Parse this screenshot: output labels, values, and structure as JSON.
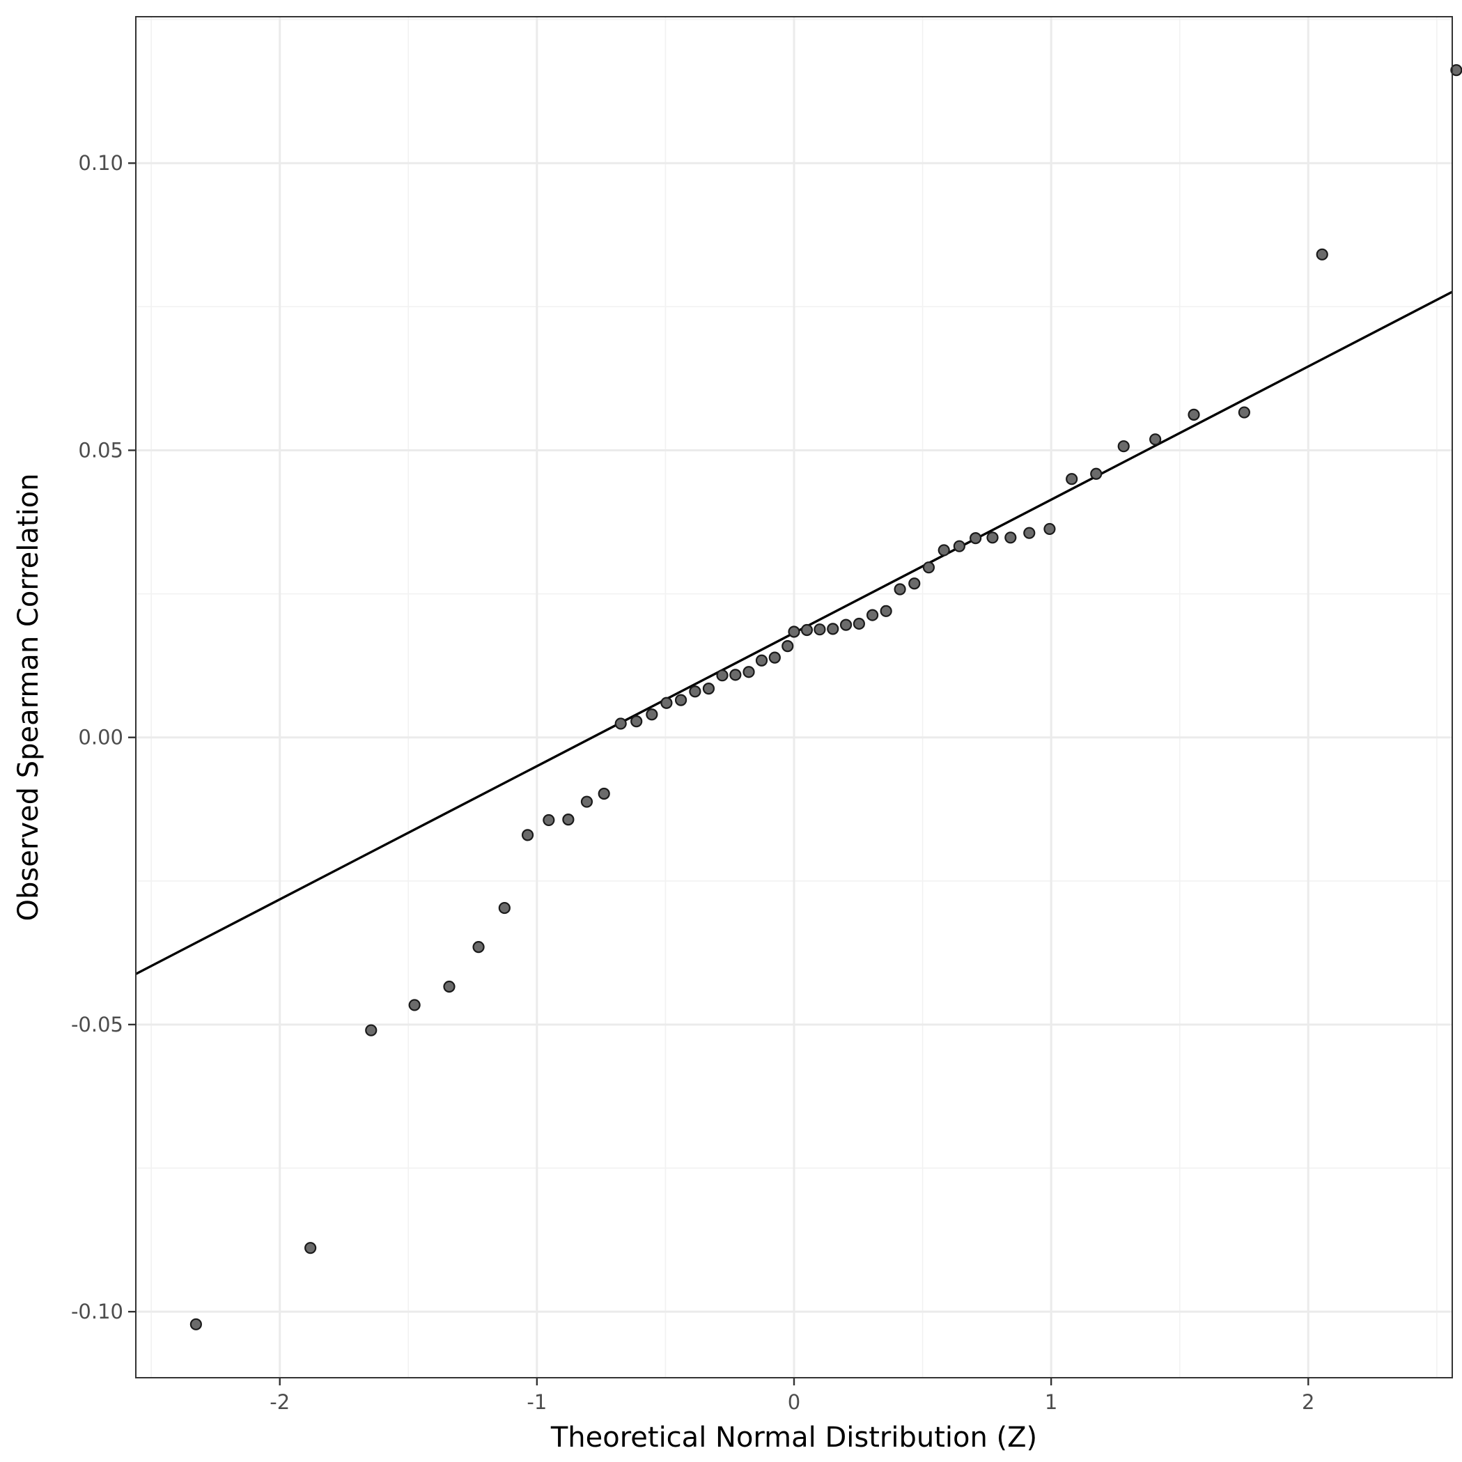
{
  "chart_data": {
    "type": "scatter",
    "title": "",
    "xlabel": "Theoretical Normal Distribution (Z)",
    "ylabel": "Observed Spearman Correlation",
    "xlim": [
      -2.56,
      2.56
    ],
    "ylim": [
      -0.1115,
      0.1255
    ],
    "x_major_ticks": [
      -2,
      -1,
      0,
      1,
      2
    ],
    "x_tick_labels": [
      "-2",
      "-1",
      "0",
      "1",
      "2"
    ],
    "x_minor_ticks": [
      -2.5,
      -1.5,
      -0.5,
      0.5,
      1.5,
      2.5
    ],
    "y_major_ticks": [
      -0.1,
      -0.05,
      0.0,
      0.05,
      0.1
    ],
    "y_tick_labels": [
      "-0.10",
      "-0.05",
      "0.00",
      "0.05",
      "0.10"
    ],
    "y_minor_ticks": [
      -0.075,
      -0.025,
      0.025,
      0.075,
      0.125
    ],
    "grid": true,
    "colors": {
      "point_fill": "#6b6b6b",
      "point_stroke": "#1a1a1a",
      "reference_line": "#000000"
    },
    "reference_line": {
      "intercept": 0.0182,
      "slope": 0.0232
    },
    "points": [
      {
        "x": -2.326,
        "y": -0.1022
      },
      {
        "x": -1.881,
        "y": -0.0889
      },
      {
        "x": -1.645,
        "y": -0.051
      },
      {
        "x": -1.476,
        "y": -0.0466
      },
      {
        "x": -1.341,
        "y": -0.0434
      },
      {
        "x": -1.227,
        "y": -0.0365
      },
      {
        "x": -1.126,
        "y": -0.0297
      },
      {
        "x": -1.036,
        "y": -0.017
      },
      {
        "x": -0.954,
        "y": -0.0144
      },
      {
        "x": -0.878,
        "y": -0.0143
      },
      {
        "x": -0.806,
        "y": -0.0112
      },
      {
        "x": -0.739,
        "y": -0.0098
      },
      {
        "x": -0.674,
        "y": 0.0024
      },
      {
        "x": -0.613,
        "y": 0.0028
      },
      {
        "x": -0.553,
        "y": 0.004
      },
      {
        "x": -0.496,
        "y": 0.006
      },
      {
        "x": -0.44,
        "y": 0.0065
      },
      {
        "x": -0.385,
        "y": 0.008
      },
      {
        "x": -0.332,
        "y": 0.0085
      },
      {
        "x": -0.279,
        "y": 0.0108
      },
      {
        "x": -0.228,
        "y": 0.0109
      },
      {
        "x": -0.176,
        "y": 0.0114
      },
      {
        "x": -0.126,
        "y": 0.0134
      },
      {
        "x": -0.075,
        "y": 0.0139
      },
      {
        "x": -0.025,
        "y": 0.0159
      },
      {
        "x": 0.0,
        "y": 0.0184
      },
      {
        "x": 0.05,
        "y": 0.0187
      },
      {
        "x": 0.1,
        "y": 0.0188
      },
      {
        "x": 0.151,
        "y": 0.0189
      },
      {
        "x": 0.202,
        "y": 0.0196
      },
      {
        "x": 0.253,
        "y": 0.0198
      },
      {
        "x": 0.305,
        "y": 0.0213
      },
      {
        "x": 0.358,
        "y": 0.022
      },
      {
        "x": 0.412,
        "y": 0.0258
      },
      {
        "x": 0.468,
        "y": 0.0268
      },
      {
        "x": 0.524,
        "y": 0.0296
      },
      {
        "x": 0.583,
        "y": 0.0326
      },
      {
        "x": 0.643,
        "y": 0.0333
      },
      {
        "x": 0.706,
        "y": 0.0347
      },
      {
        "x": 0.772,
        "y": 0.0348
      },
      {
        "x": 0.842,
        "y": 0.0348
      },
      {
        "x": 0.915,
        "y": 0.0356
      },
      {
        "x": 0.994,
        "y": 0.0363
      },
      {
        "x": 1.08,
        "y": 0.045
      },
      {
        "x": 1.175,
        "y": 0.0459
      },
      {
        "x": 1.282,
        "y": 0.0507
      },
      {
        "x": 1.405,
        "y": 0.0519
      },
      {
        "x": 1.555,
        "y": 0.0562
      },
      {
        "x": 1.751,
        "y": 0.0566
      },
      {
        "x": 2.054,
        "y": 0.0841
      },
      {
        "x": 2.576,
        "y": 0.1162
      }
    ]
  }
}
